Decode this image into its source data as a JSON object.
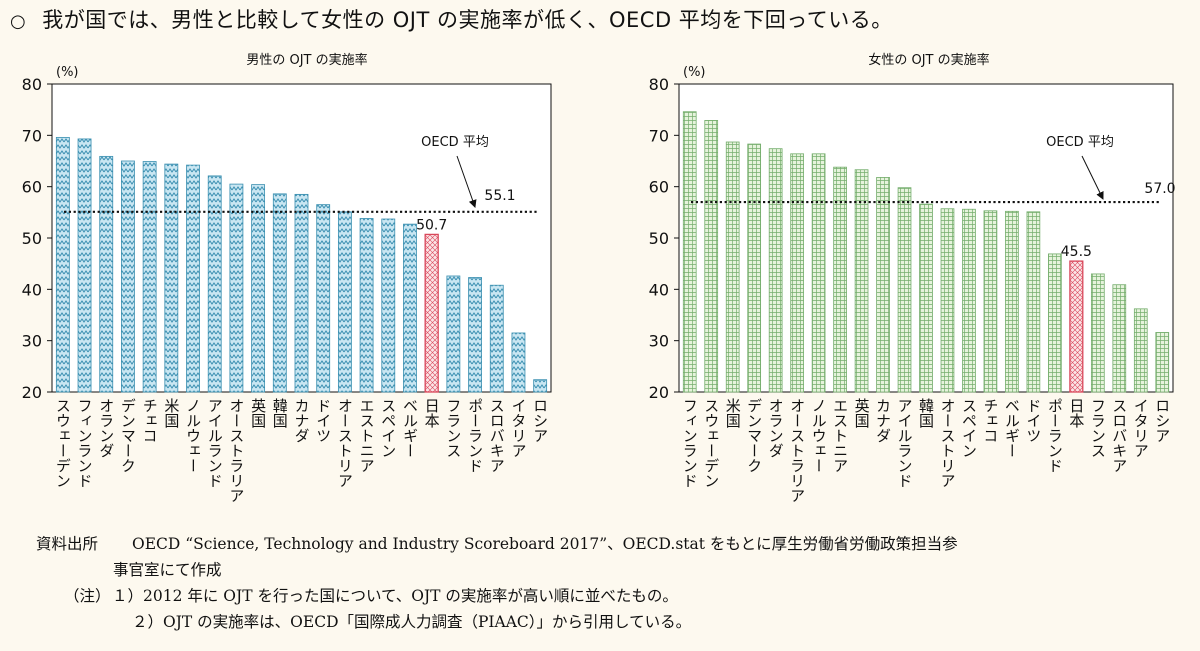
{
  "headline": {
    "bullet": "○",
    "text": "我が国では、男性と比較して女性の OJT の実施率が低く、OECD 平均を下回っている。"
  },
  "colors": {
    "male_fill": "#c9e6f2",
    "male_stroke": "#3a8fb0",
    "female_fill": "#e6f3dc",
    "female_stroke": "#74ad6c",
    "japan_fill": "#fbe4e6",
    "japan_stroke": "#d9475b"
  },
  "chart_data": [
    {
      "type": "bar",
      "title": "男性の OJT の実施率",
      "ylabel": "(%)",
      "ylim": [
        20,
        80
      ],
      "yticks": [
        20,
        30,
        40,
        50,
        60,
        70,
        80
      ],
      "categories": [
        "スウェーデン",
        "フィンランド",
        "オランダ",
        "デンマーク",
        "チェコ",
        "米国",
        "ノルウェー",
        "アイルランド",
        "オーストラリア",
        "英国",
        "韓国",
        "カナダ",
        "ドイツ",
        "オーストリア",
        "エストニア",
        "スペイン",
        "ベルギー",
        "日本",
        "フランス",
        "ポーランド",
        "スロバキア",
        "イタリア",
        "ロシア"
      ],
      "values": [
        69.6,
        69.3,
        65.9,
        65.0,
        64.9,
        64.4,
        64.2,
        62.1,
        60.5,
        60.4,
        58.6,
        58.5,
        56.5,
        55.1,
        53.8,
        53.7,
        52.7,
        50.7,
        42.6,
        42.3,
        40.8,
        31.5,
        22.4
      ],
      "highlight": "日本",
      "highlight_label": "50.7",
      "oecd_average": 55.1,
      "oecd_label": "OECD 平均",
      "oecd_value_label": "55.1"
    },
    {
      "type": "bar",
      "title": "女性の OJT の実施率",
      "ylabel": "(%)",
      "ylim": [
        20,
        80
      ],
      "yticks": [
        20,
        30,
        40,
        50,
        60,
        70,
        80
      ],
      "categories": [
        "フィンランド",
        "スウェーデン",
        "米国",
        "デンマーク",
        "オランダ",
        "オーストラリア",
        "ノルウェー",
        "エストニア",
        "英国",
        "カナダ",
        "アイルランド",
        "韓国",
        "オーストリア",
        "スペイン",
        "チェコ",
        "ベルギー",
        "ドイツ",
        "ポーランド",
        "日本",
        "フランス",
        "スロバキア",
        "イタリア",
        "ロシア"
      ],
      "values": [
        74.6,
        72.9,
        68.7,
        68.3,
        67.4,
        66.4,
        66.4,
        63.8,
        63.3,
        61.8,
        59.8,
        56.6,
        55.7,
        55.6,
        55.3,
        55.2,
        55.1,
        46.9,
        45.5,
        43.0,
        40.9,
        36.2,
        31.6
      ],
      "highlight": "日本",
      "highlight_label": "45.5",
      "oecd_average": 57.0,
      "oecd_label": "OECD 平均",
      "oecd_value_label": "57.0"
    }
  ],
  "footer": {
    "source_label": "資料出所",
    "source_line1": "OECD “Science, Technology and Industry Scoreboard 2017”、OECD.stat をもとに厚生労働省労働政策担当参",
    "source_line2": "事官室にて作成",
    "note_label": "（注）",
    "note1": "１）2012 年に OJT を行った国について、OJT の実施率が高い順に並べたもの。",
    "note2": "２）OJT の実施率は、OECD「国際成人力調査（PIAAC）」から引用している。"
  }
}
